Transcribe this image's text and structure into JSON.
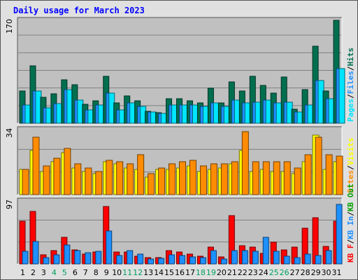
{
  "title": "Daily usage for March 2023",
  "colors": {
    "hits": "#006f4f",
    "files": "#1e90ff",
    "pages": "#00e5ff",
    "visits": "#ffff00",
    "sites": "#ff8c00",
    "kb_f": "#ff0000",
    "kb_in": "#1e90ff",
    "kb_out": "#00a000",
    "weekday_label": "#000000",
    "weekend_label": "#00a060",
    "panel_bg": "#c0c0c0"
  },
  "chart_data": {
    "type": "bar",
    "title": "Daily usage for March 2023",
    "days": [
      "1",
      "2",
      "3",
      "4",
      "5",
      "6",
      "7",
      "8",
      "9",
      "10",
      "11",
      "12",
      "13",
      "14",
      "15",
      "16",
      "17",
      "18",
      "19",
      "20",
      "21",
      "22",
      "23",
      "24",
      "25",
      "26",
      "27",
      "28",
      "29",
      "30",
      "31"
    ],
    "weekend_days": [
      "4",
      "5",
      "11",
      "12",
      "18",
      "19",
      "25",
      "26"
    ],
    "panels": [
      {
        "name": "hits_files_pages",
        "max_label": "170",
        "ymax": 170,
        "legend": [
          {
            "text": "Pages",
            "color_key": "pages"
          },
          {
            "text": "/",
            "color_key": "divider"
          },
          {
            "text": "Files",
            "color_key": "files"
          },
          {
            "text": "/",
            "color_key": "divider"
          },
          {
            "text": "Hits",
            "color_key": "hits"
          }
        ],
        "series": [
          {
            "name": "Hits",
            "color_key": "hits",
            "values": [
              53,
              95,
              43,
              49,
              72,
              64,
              31,
              37,
              78,
              33,
              45,
              37,
              20,
              17,
              41,
              41,
              37,
              33,
              58,
              34,
              68,
              53,
              78,
              62,
              50,
              76,
              23,
              56,
              127,
              53,
              170
            ]
          },
          {
            "name": "Files",
            "color_key": "files",
            "values": [
              30,
              53,
              25,
              32,
              55,
              38,
              22,
              30,
              50,
              22,
              33,
              28,
              18,
              16,
              30,
              30,
              30,
              28,
              33,
              28,
              38,
              33,
              35,
              38,
              33,
              35,
              18,
              30,
              70,
              40,
              90
            ]
          },
          {
            "name": "Pages",
            "color_key": "pages",
            "values": [
              30,
              53,
              25,
              32,
              55,
              38,
              22,
              30,
              50,
              22,
              33,
              28,
              18,
              16,
              30,
              30,
              30,
              28,
              33,
              28,
              38,
              33,
              35,
              38,
              33,
              35,
              18,
              30,
              70,
              40,
              90
            ]
          }
        ]
      },
      {
        "name": "visits_sites",
        "max_label": "34",
        "ymax": 34,
        "legend": [
          {
            "text": "Sites",
            "color_key": "sites"
          },
          {
            "text": "/",
            "color_key": "divider"
          },
          {
            "text": "Visits",
            "color_key": "visits"
          }
        ],
        "series": [
          {
            "name": "Visits",
            "color_key": "visits",
            "values": [
              13,
              23,
              12,
              17,
              22,
              14,
              12,
              11,
              17,
              16,
              14,
              13,
              9,
              13,
              13,
              14,
              15,
              12,
              13,
              14,
              16,
              23,
              12,
              13,
              12,
              12,
              11,
              17,
              31,
              13,
              17
            ]
          },
          {
            "name": "Sites",
            "color_key": "sites",
            "values": [
              13,
              30,
              15,
              19,
              24,
              16,
              14,
              12,
              18,
              17,
              16,
              21,
              11,
              14,
              16,
              17,
              18,
              15,
              16,
              16,
              17,
              33,
              17,
              17,
              17,
              17,
              14,
              21,
              30,
              21,
              20
            ]
          }
        ]
      },
      {
        "name": "kbytes",
        "max_label": "97",
        "ymax": 97,
        "legend": [
          {
            "text": "KB F",
            "color_key": "kb_f"
          },
          {
            "text": "/",
            "color_key": "divider"
          },
          {
            "text": "KB In",
            "color_key": "kb_in"
          },
          {
            "text": "/",
            "color_key": "divider"
          },
          {
            "text": "KB Out",
            "color_key": "kb_out"
          }
        ],
        "series": [
          {
            "name": "KB F",
            "color_key": "kb_f",
            "values": [
              66,
              81,
              14,
              21,
              41,
              22,
              15,
              18,
              88,
              18,
              18,
              12,
              10,
              10,
              21,
              18,
              15,
              12,
              26,
              11,
              74,
              28,
              26,
              16,
              33,
              22,
              26,
              55,
              71,
              27,
              66
            ]
          },
          {
            "name": "KB In",
            "color_key": "kb_in",
            "values": [
              19,
              34,
              10,
              14,
              29,
              21,
              17,
              19,
              51,
              13,
              20,
              15,
              8,
              9,
              14,
              13,
              11,
              10,
              21,
              8,
              21,
              21,
              19,
              41,
              19,
              12,
              10,
              15,
              13,
              21,
              92
            ]
          }
        ]
      }
    ]
  }
}
